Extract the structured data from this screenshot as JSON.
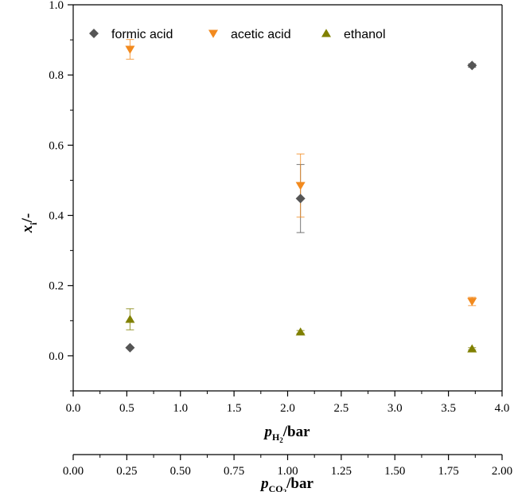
{
  "chart_data": {
    "type": "scatter",
    "title": "",
    "xlabel": {
      "symbol": "p",
      "subscript": "H",
      "subscript2": "2",
      "unit": "/bar"
    },
    "x2label": {
      "symbol": "p",
      "subscript": "CO",
      "subscript2": "2",
      "unit": "/bar"
    },
    "ylabel": {
      "symbol": "x",
      "subscript": "i",
      "unit": "/-"
    },
    "xlim": [
      0,
      4
    ],
    "x2lim": [
      0,
      2
    ],
    "ylim": [
      -0.1,
      1.0
    ],
    "xticks": [
      "0.0",
      "0.5",
      "1.0",
      "1.5",
      "2.0",
      "2.5",
      "3.0",
      "3.5",
      "4.0"
    ],
    "x2ticks": [
      "0.00",
      "0.25",
      "0.50",
      "0.75",
      "1.00",
      "1.25",
      "1.50",
      "1.75",
      "2.00"
    ],
    "yticks": [
      "0.0",
      "0.2",
      "0.4",
      "0.6",
      "0.8",
      "1.0"
    ],
    "legend_position": "top",
    "series": [
      {
        "name": "formic acid",
        "marker": "diamond",
        "color": "#555555",
        "x": [
          0.53,
          2.12,
          3.72
        ],
        "y": [
          0.023,
          0.448,
          0.827
        ],
        "err": [
          0,
          0.097,
          0.005
        ]
      },
      {
        "name": "acetic acid",
        "marker": "triangle-down",
        "color": "#f28a1e",
        "x": [
          0.53,
          2.12,
          3.72
        ],
        "y": [
          0.873,
          0.485,
          0.155
        ],
        "err": [
          0.028,
          0.09,
          0.012
        ]
      },
      {
        "name": "ethanol",
        "marker": "triangle-up",
        "color": "#808000",
        "x": [
          0.53,
          2.12,
          3.72
        ],
        "y": [
          0.104,
          0.068,
          0.02
        ],
        "err": [
          0.03,
          0.004,
          0.003
        ]
      }
    ]
  }
}
